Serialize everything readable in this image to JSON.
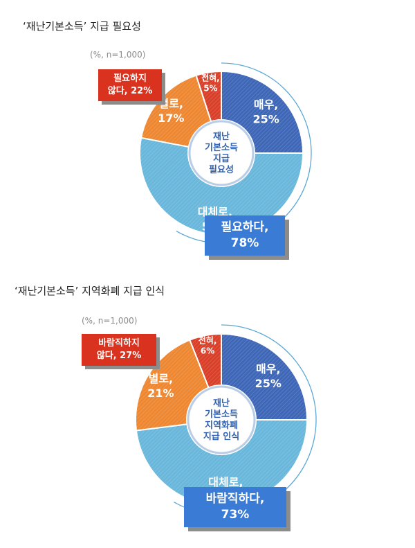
{
  "chart_data": [
    {
      "type": "donut",
      "title": "‘재난기본소득’ 지급 필요성",
      "note": "(%, n=1,000)",
      "center_label": [
        "재난",
        "기본소득",
        "지급",
        "필요성"
      ],
      "slices": [
        {
          "label": "매우,",
          "value": 25,
          "color": "#3f67b7"
        },
        {
          "label": "대체로,",
          "value": 53,
          "color": "#6ab7dc"
        },
        {
          "label": "별로,",
          "value": 17,
          "color": "#ee8731"
        },
        {
          "label": "전혀,",
          "value": 5,
          "color": "#d9402a"
        }
      ],
      "callout_negative": {
        "line1": "필요하지",
        "line2": "않다, 22%"
      },
      "callout_positive": {
        "line1": "필요하다,",
        "line2": "78%"
      }
    },
    {
      "type": "donut",
      "title": "‘재난기본소득’ 지역화폐 지급 인식",
      "note": "(%, n=1,000)",
      "center_label": [
        "재난",
        "기본소득",
        "지역화폐",
        "지급 인식"
      ],
      "slices": [
        {
          "label": "매우,",
          "value": 25,
          "color": "#3f67b7"
        },
        {
          "label": "대체로,",
          "value": 48,
          "color": "#6ab7dc"
        },
        {
          "label": "별로,",
          "value": 21,
          "color": "#ee8731"
        },
        {
          "label": "전혀,",
          "value": 6,
          "color": "#d9402a"
        }
      ],
      "callout_negative": {
        "line1": "바람직하지",
        "line2": "않다, 27%"
      },
      "callout_positive": {
        "line1": "바람직하다,",
        "line2": "73%"
      }
    }
  ]
}
